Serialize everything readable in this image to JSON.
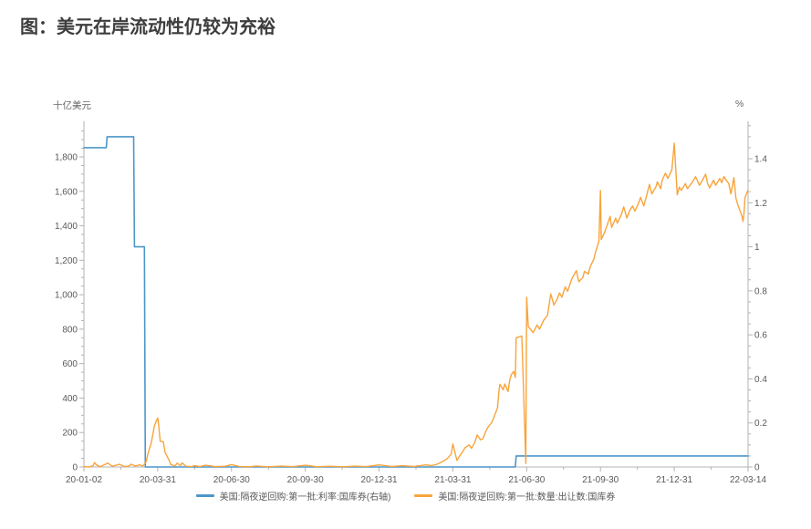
{
  "page": {
    "title": "图：美元在岸流动性仍较为充裕"
  },
  "colors": {
    "rate_line": "#4D96C9",
    "quantity_line": "#F8A43C",
    "axis": "#B3B3B3",
    "tick_text": "#595959",
    "title_text": "#3D3D3D"
  },
  "chart_data": {
    "type": "line",
    "title": "图：美元在岸流动性仍较为充裕",
    "grid": false,
    "legend_position": "bottom-center",
    "left_axis": {
      "label": "十亿美元",
      "min": 0,
      "max": 1800,
      "major_step": 200,
      "minor_step": 50,
      "tick_labels": [
        "0",
        "200",
        "400",
        "600",
        "800",
        "1,000",
        "1,200",
        "1,400",
        "1,600",
        "1,800"
      ]
    },
    "right_axis": {
      "label": "%",
      "min": 0,
      "max": 1.4,
      "major_step": 0.2,
      "minor_step": 0.05,
      "tick_labels": [
        "0",
        "0.2",
        "0.4",
        "0.6",
        "0.8",
        "1",
        "1.2",
        "1.4"
      ]
    },
    "x_axis": {
      "labels": [
        "20-01-02",
        "20-03-31",
        "20-06-30",
        "20-09-30",
        "20-12-31",
        "21-03-31",
        "21-06-30",
        "21-09-30",
        "21-12-31",
        "22-03-14"
      ],
      "tick_dates": [
        "2020-01-02",
        "2020-03-31",
        "2020-06-30",
        "2020-09-30",
        "2020-12-31",
        "2021-03-31",
        "2021-06-30",
        "2021-09-30",
        "2021-12-31",
        "2022-03-14"
      ]
    },
    "series": [
      {
        "name": "美国:隔夜逆回购:第一批:利率:国库券(右轴)",
        "axis": "right",
        "color": "#4D96C9",
        "points": [
          [
            "2020-01-02",
            1.45
          ],
          [
            "2020-01-29",
            1.45
          ],
          [
            "2020-01-30",
            1.5
          ],
          [
            "2020-03-02",
            1.5
          ],
          [
            "2020-03-03",
            1.0
          ],
          [
            "2020-03-15",
            1.0
          ],
          [
            "2020-03-16",
            0
          ],
          [
            "2021-06-16",
            0
          ],
          [
            "2021-06-17",
            0.05
          ],
          [
            "2022-03-14",
            0.05
          ]
        ]
      },
      {
        "name": "美国:隔夜逆回购:第一批:数量:出让数:国库券",
        "axis": "left",
        "color": "#F8A43C",
        "points": [
          [
            "2020-01-02",
            2
          ],
          [
            "2020-01-08",
            0
          ],
          [
            "2020-01-13",
            8
          ],
          [
            "2020-01-15",
            26
          ],
          [
            "2020-01-17",
            12
          ],
          [
            "2020-01-22",
            2
          ],
          [
            "2020-01-27",
            14
          ],
          [
            "2020-01-31",
            22
          ],
          [
            "2020-02-05",
            4
          ],
          [
            "2020-02-10",
            10
          ],
          [
            "2020-02-14",
            16
          ],
          [
            "2020-02-19",
            4
          ],
          [
            "2020-02-24",
            2
          ],
          [
            "2020-02-28",
            16
          ],
          [
            "2020-03-04",
            6
          ],
          [
            "2020-03-09",
            12
          ],
          [
            "2020-03-13",
            6
          ],
          [
            "2020-03-17",
            30
          ],
          [
            "2020-03-19",
            75
          ],
          [
            "2020-03-23",
            135
          ],
          [
            "2020-03-25",
            185
          ],
          [
            "2020-03-27",
            240
          ],
          [
            "2020-03-31",
            285
          ],
          [
            "2020-04-01",
            250
          ],
          [
            "2020-04-03",
            150
          ],
          [
            "2020-04-07",
            145
          ],
          [
            "2020-04-09",
            85
          ],
          [
            "2020-04-14",
            40
          ],
          [
            "2020-04-16",
            15
          ],
          [
            "2020-04-21",
            6
          ],
          [
            "2020-04-24",
            22
          ],
          [
            "2020-04-28",
            8
          ],
          [
            "2020-04-30",
            24
          ],
          [
            "2020-05-05",
            4
          ],
          [
            "2020-05-12",
            2
          ],
          [
            "2020-05-15",
            8
          ],
          [
            "2020-05-22",
            2
          ],
          [
            "2020-05-29",
            10
          ],
          [
            "2020-06-10",
            2
          ],
          [
            "2020-06-22",
            4
          ],
          [
            "2020-06-30",
            14
          ],
          [
            "2020-07-10",
            2
          ],
          [
            "2020-07-22",
            1
          ],
          [
            "2020-07-31",
            6
          ],
          [
            "2020-08-14",
            1
          ],
          [
            "2020-08-31",
            5
          ],
          [
            "2020-09-15",
            2
          ],
          [
            "2020-09-30",
            10
          ],
          [
            "2020-10-15",
            1
          ],
          [
            "2020-10-30",
            4
          ],
          [
            "2020-11-16",
            1
          ],
          [
            "2020-11-30",
            5
          ],
          [
            "2020-12-15",
            2
          ],
          [
            "2020-12-31",
            12
          ],
          [
            "2021-01-15",
            3
          ],
          [
            "2021-01-29",
            7
          ],
          [
            "2021-02-12",
            3
          ],
          [
            "2021-02-26",
            12
          ],
          [
            "2021-03-05",
            8
          ],
          [
            "2021-03-11",
            15
          ],
          [
            "2021-03-17",
            28
          ],
          [
            "2021-03-24",
            48
          ],
          [
            "2021-03-29",
            75
          ],
          [
            "2021-03-31",
            134
          ],
          [
            "2021-04-05",
            38
          ],
          [
            "2021-04-08",
            62
          ],
          [
            "2021-04-13",
            96
          ],
          [
            "2021-04-15",
            112
          ],
          [
            "2021-04-20",
            128
          ],
          [
            "2021-04-23",
            108
          ],
          [
            "2021-04-27",
            142
          ],
          [
            "2021-04-30",
            186
          ],
          [
            "2021-05-04",
            158
          ],
          [
            "2021-05-07",
            164
          ],
          [
            "2021-05-11",
            212
          ],
          [
            "2021-05-14",
            236
          ],
          [
            "2021-05-18",
            258
          ],
          [
            "2021-05-21",
            294
          ],
          [
            "2021-05-25",
            342
          ],
          [
            "2021-05-27",
            450
          ],
          [
            "2021-05-28",
            480
          ],
          [
            "2021-06-01",
            448
          ],
          [
            "2021-06-03",
            482
          ],
          [
            "2021-06-07",
            438
          ],
          [
            "2021-06-09",
            502
          ],
          [
            "2021-06-11",
            535
          ],
          [
            "2021-06-14",
            555
          ],
          [
            "2021-06-16",
            520
          ],
          [
            "2021-06-17",
            750
          ],
          [
            "2021-06-24",
            760
          ],
          [
            "2021-06-29",
            20
          ],
          [
            "2021-06-30",
            985
          ],
          [
            "2021-07-02",
            815
          ],
          [
            "2021-07-08",
            780
          ],
          [
            "2021-07-13",
            825
          ],
          [
            "2021-07-16",
            800
          ],
          [
            "2021-07-21",
            850
          ],
          [
            "2021-07-26",
            880
          ],
          [
            "2021-07-30",
            1005
          ],
          [
            "2021-08-03",
            940
          ],
          [
            "2021-08-06",
            965
          ],
          [
            "2021-08-10",
            1010
          ],
          [
            "2021-08-13",
            985
          ],
          [
            "2021-08-17",
            1045
          ],
          [
            "2021-08-20",
            1020
          ],
          [
            "2021-08-25",
            1090
          ],
          [
            "2021-08-31",
            1140
          ],
          [
            "2021-09-03",
            1075
          ],
          [
            "2021-09-08",
            1100
          ],
          [
            "2021-09-10",
            1135
          ],
          [
            "2021-09-15",
            1120
          ],
          [
            "2021-09-17",
            1160
          ],
          [
            "2021-09-22",
            1210
          ],
          [
            "2021-09-24",
            1250
          ],
          [
            "2021-09-28",
            1310
          ],
          [
            "2021-09-30",
            1605
          ],
          [
            "2021-10-01",
            1320
          ],
          [
            "2021-10-05",
            1360
          ],
          [
            "2021-10-08",
            1400
          ],
          [
            "2021-10-12",
            1455
          ],
          [
            "2021-10-14",
            1390
          ],
          [
            "2021-10-19",
            1445
          ],
          [
            "2021-10-21",
            1415
          ],
          [
            "2021-10-26",
            1465
          ],
          [
            "2021-10-29",
            1510
          ],
          [
            "2021-11-02",
            1445
          ],
          [
            "2021-11-05",
            1485
          ],
          [
            "2021-11-09",
            1515
          ],
          [
            "2021-11-12",
            1485
          ],
          [
            "2021-11-16",
            1525
          ],
          [
            "2021-11-19",
            1565
          ],
          [
            "2021-11-23",
            1515
          ],
          [
            "2021-11-26",
            1565
          ],
          [
            "2021-11-30",
            1640
          ],
          [
            "2021-12-03",
            1585
          ],
          [
            "2021-12-08",
            1625
          ],
          [
            "2021-12-10",
            1655
          ],
          [
            "2021-12-14",
            1615
          ],
          [
            "2021-12-16",
            1665
          ],
          [
            "2021-12-20",
            1705
          ],
          [
            "2021-12-23",
            1675
          ],
          [
            "2021-12-28",
            1725
          ],
          [
            "2021-12-31",
            1880
          ],
          [
            "2022-01-03",
            1580
          ],
          [
            "2022-01-05",
            1625
          ],
          [
            "2022-01-07",
            1605
          ],
          [
            "2022-01-11",
            1645
          ],
          [
            "2022-01-13",
            1615
          ],
          [
            "2022-01-18",
            1655
          ],
          [
            "2022-01-21",
            1685
          ],
          [
            "2022-01-25",
            1635
          ],
          [
            "2022-01-28",
            1665
          ],
          [
            "2022-01-31",
            1700
          ],
          [
            "2022-02-02",
            1645
          ],
          [
            "2022-02-04",
            1620
          ],
          [
            "2022-02-08",
            1665
          ],
          [
            "2022-02-10",
            1635
          ],
          [
            "2022-02-14",
            1675
          ],
          [
            "2022-02-16",
            1650
          ],
          [
            "2022-02-18",
            1685
          ],
          [
            "2022-02-23",
            1645
          ],
          [
            "2022-02-25",
            1585
          ],
          [
            "2022-02-28",
            1680
          ],
          [
            "2022-03-02",
            1560
          ],
          [
            "2022-03-04",
            1520
          ],
          [
            "2022-03-08",
            1455
          ],
          [
            "2022-03-09",
            1425
          ],
          [
            "2022-03-10",
            1475
          ],
          [
            "2022-03-11",
            1565
          ],
          [
            "2022-03-14",
            1608
          ]
        ]
      }
    ]
  }
}
